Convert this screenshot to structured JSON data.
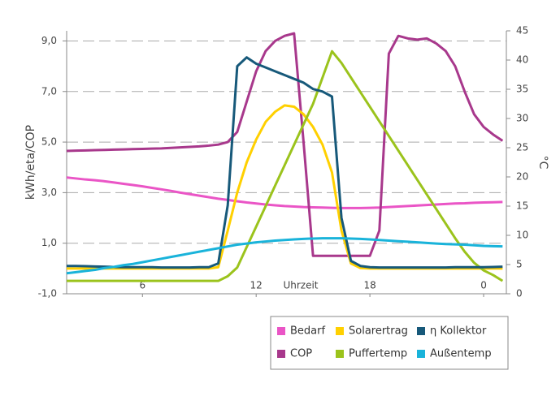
{
  "chart_data": {
    "type": "line",
    "y_label": "kWh/eta/COP",
    "y2_label": "°C",
    "x_label": "Uhrzeit",
    "x": [
      2,
      2.5,
      3,
      3.5,
      4,
      4.5,
      5,
      5.5,
      6,
      6.5,
      7,
      7.5,
      8,
      8.5,
      9,
      9.5,
      10,
      10.5,
      11,
      11.5,
      12,
      12.5,
      13,
      13.5,
      14,
      14.5,
      15,
      15.5,
      16,
      16.5,
      17,
      17.5,
      18,
      18.5,
      19,
      19.5,
      20,
      20.5,
      21,
      21.5,
      22,
      22.5,
      23,
      23.5,
      24,
      24.5,
      25
    ],
    "xlim": [
      2,
      25.2
    ],
    "xticks": [
      6,
      12,
      18,
      {
        "value": 24,
        "label": "0"
      }
    ],
    "ylim": [
      -1,
      9.4
    ],
    "yticks": [
      {
        "value": -1,
        "label": "-1,0"
      },
      {
        "value": 1,
        "label": "1,0"
      },
      {
        "value": 3,
        "label": "3,0"
      },
      {
        "value": 5,
        "label": "5,0"
      },
      {
        "value": 7,
        "label": "7,0"
      },
      {
        "value": 9,
        "label": "9,0"
      }
    ],
    "y2lim": [
      0,
      45
    ],
    "y2ticks": [
      0,
      5,
      10,
      15,
      20,
      25,
      30,
      35,
      40,
      45
    ],
    "grid": true,
    "legend": "bottom-right",
    "series": [
      {
        "name": "Bedarf",
        "color": "#ea55c6",
        "values": [
          3.6,
          3.56,
          3.52,
          3.49,
          3.45,
          3.4,
          3.35,
          3.3,
          3.25,
          3.19,
          3.13,
          3.07,
          3.0,
          2.94,
          2.88,
          2.82,
          2.76,
          2.71,
          2.66,
          2.61,
          2.57,
          2.53,
          2.5,
          2.47,
          2.45,
          2.43,
          2.42,
          2.41,
          2.4,
          2.39,
          2.39,
          2.39,
          2.4,
          2.41,
          2.43,
          2.45,
          2.47,
          2.49,
          2.51,
          2.53,
          2.55,
          2.57,
          2.58,
          2.6,
          2.61,
          2.62,
          2.63
        ]
      },
      {
        "name": "COP",
        "color": "#a8388c",
        "values": [
          4.65,
          4.66,
          4.67,
          4.68,
          4.69,
          4.7,
          4.71,
          4.72,
          4.73,
          4.74,
          4.75,
          4.77,
          4.79,
          4.81,
          4.83,
          4.86,
          4.9,
          5.0,
          5.4,
          6.6,
          7.8,
          8.6,
          9.0,
          9.2,
          9.3,
          5.0,
          0.5,
          0.5,
          0.5,
          0.5,
          0.5,
          0.5,
          0.5,
          1.5,
          8.5,
          9.2,
          9.1,
          9.05,
          9.1,
          8.9,
          8.6,
          8.0,
          7.0,
          6.1,
          5.6,
          5.3,
          5.05
        ]
      },
      {
        "name": "Solarertrag",
        "color": "#ffd000",
        "values": [
          0,
          0,
          0,
          0,
          0,
          0,
          0,
          0,
          0,
          0,
          0,
          0,
          0,
          0,
          0,
          0,
          0.05,
          1.5,
          3.0,
          4.2,
          5.1,
          5.8,
          6.2,
          6.45,
          6.4,
          6.1,
          5.6,
          4.9,
          3.8,
          1.5,
          0.2,
          0.02,
          0,
          0,
          0,
          0,
          0,
          0,
          0,
          0,
          0,
          0,
          0,
          0,
          0,
          0,
          0
        ]
      },
      {
        "name": "Puffertemp",
        "color": "#9bc31c",
        "axis": "y2",
        "values": [
          2.2,
          2.2,
          2.2,
          2.2,
          2.2,
          2.2,
          2.2,
          2.2,
          2.2,
          2.2,
          2.2,
          2.2,
          2.2,
          2.2,
          2.2,
          2.2,
          2.2,
          3.0,
          4.5,
          8,
          11.5,
          15,
          18.5,
          22,
          25.5,
          29,
          32.5,
          37,
          41.5,
          39.5,
          37,
          34.5,
          32,
          29.5,
          27,
          24.5,
          22,
          19.5,
          17,
          14.5,
          12,
          9.5,
          7.2,
          5.3,
          4.0,
          3.2,
          2.2
        ]
      },
      {
        "name": "η Kollektor",
        "color": "#17597a",
        "values": [
          0.1,
          0.1,
          0.09,
          0.08,
          0.07,
          0.06,
          0.05,
          0.05,
          0.05,
          0.05,
          0.04,
          0.04,
          0.04,
          0.04,
          0.05,
          0.05,
          0.2,
          2.5,
          8.0,
          8.35,
          8.1,
          7.95,
          7.8,
          7.65,
          7.5,
          7.35,
          7.1,
          7.0,
          6.8,
          2.0,
          0.3,
          0.1,
          0.05,
          0.04,
          0.04,
          0.04,
          0.04,
          0.04,
          0.04,
          0.04,
          0.04,
          0.05,
          0.05,
          0.05,
          0.05,
          0.06,
          0.07
        ]
      },
      {
        "name": "Außentemp",
        "color": "#19b3da",
        "axis": "y2",
        "values": [
          3.5,
          3.7,
          3.9,
          4.1,
          4.4,
          4.6,
          4.9,
          5.1,
          5.4,
          5.7,
          6.0,
          6.3,
          6.6,
          6.9,
          7.2,
          7.5,
          7.8,
          8.1,
          8.4,
          8.6,
          8.8,
          8.95,
          9.1,
          9.2,
          9.3,
          9.4,
          9.45,
          9.5,
          9.5,
          9.5,
          9.45,
          9.4,
          9.3,
          9.2,
          9.1,
          9.0,
          8.9,
          8.8,
          8.7,
          8.6,
          8.5,
          8.45,
          8.4,
          8.3,
          8.2,
          8.15,
          8.1
        ]
      }
    ]
  }
}
